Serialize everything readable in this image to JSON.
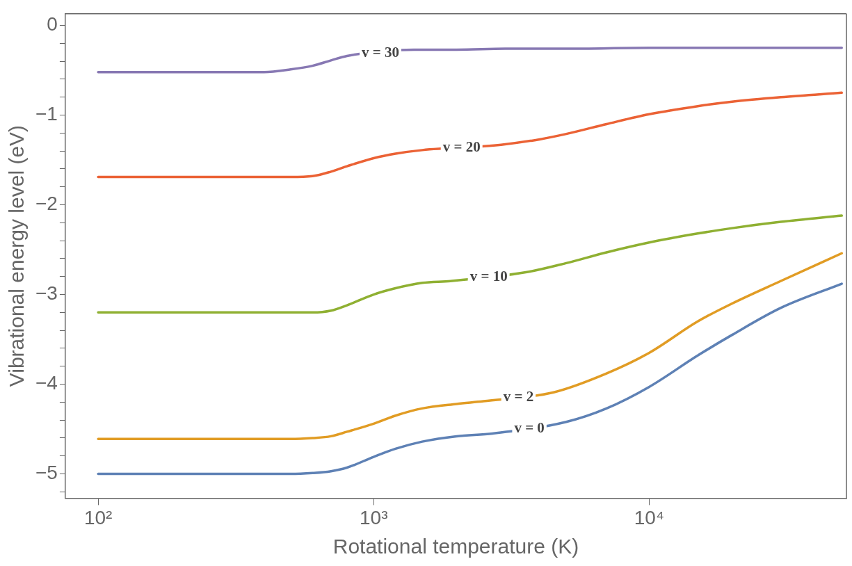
{
  "chart_data": {
    "type": "line",
    "xlabel": "Rotational temperature (K)",
    "ylabel": "Vibrational energy level (eV)",
    "log": "x",
    "grid": false,
    "legend": false,
    "marker": "none",
    "line_style": "solid",
    "xlim": [
      76,
      52000
    ],
    "xticks": [
      {
        "value": 100,
        "label": "10²"
      },
      {
        "value": 1000,
        "label": "10³"
      },
      {
        "value": 10000,
        "label": "10⁴"
      }
    ],
    "ylim": [
      -5.27,
      0.13
    ],
    "yticks": [
      {
        "value": -5.2,
        "label": null
      },
      -5,
      {
        "value": -4.8,
        "label": null
      },
      {
        "value": -4.6,
        "label": null
      },
      {
        "value": -4.4,
        "label": null
      },
      {
        "value": -4.2,
        "label": null
      },
      -4,
      {
        "value": -3.8,
        "label": null
      },
      {
        "value": -3.6,
        "label": null
      },
      {
        "value": -3.4,
        "label": null
      },
      {
        "value": -3.2,
        "label": null
      },
      -3,
      {
        "value": -2.8,
        "label": null
      },
      {
        "value": -2.6,
        "label": null
      },
      {
        "value": -2.4,
        "label": null
      },
      {
        "value": -2.2,
        "label": null
      },
      -2,
      {
        "value": -1.8,
        "label": null
      },
      {
        "value": -1.6,
        "label": null
      },
      {
        "value": -1.4,
        "label": null
      },
      {
        "value": -1.2,
        "label": null
      },
      -1,
      {
        "value": -0.8,
        "label": null
      },
      {
        "value": -0.6,
        "label": null
      },
      {
        "value": -0.4,
        "label": null
      },
      {
        "value": -0.2,
        "label": null
      },
      0
    ],
    "series": [
      {
        "name": "v = 0",
        "color": "#5e81b5",
        "x": [
          100,
          200,
          300,
          400,
          500,
          600,
          700,
          800,
          1000,
          1200,
          1500,
          2000,
          2700,
          5000,
          7000,
          10000,
          15000,
          20000,
          30000,
          50000
        ],
        "values": [
          -5.0,
          -5.0,
          -5.0,
          -5.0,
          -5.0,
          -4.99,
          -4.97,
          -4.93,
          -4.81,
          -4.72,
          -4.64,
          -4.58,
          -4.55,
          -4.42,
          -4.27,
          -4.03,
          -3.68,
          -3.45,
          -3.15,
          -2.88
        ]
      },
      {
        "name": "v = 2",
        "color": "#e19c24",
        "x": [
          100,
          200,
          300,
          400,
          500,
          600,
          700,
          800,
          1000,
          1200,
          1500,
          2000,
          2500,
          4500,
          7000,
          10000,
          15000,
          20000,
          30000,
          50000
        ],
        "values": [
          -4.61,
          -4.61,
          -4.61,
          -4.61,
          -4.61,
          -4.6,
          -4.58,
          -4.53,
          -4.44,
          -4.35,
          -4.27,
          -4.22,
          -4.19,
          -4.09,
          -3.88,
          -3.65,
          -3.3,
          -3.1,
          -2.85,
          -2.54
        ]
      },
      {
        "name": "v = 10",
        "color": "#8fb032",
        "x": [
          100,
          200,
          300,
          400,
          500,
          600,
          700,
          800,
          1000,
          1200,
          1500,
          1900,
          3600,
          5000,
          7000,
          10000,
          15000,
          20000,
          30000,
          50000
        ],
        "values": [
          -3.2,
          -3.2,
          -3.2,
          -3.2,
          -3.2,
          -3.2,
          -3.18,
          -3.12,
          -3.0,
          -2.93,
          -2.87,
          -2.85,
          -2.75,
          -2.65,
          -2.53,
          -2.42,
          -2.32,
          -2.26,
          -2.19,
          -2.12
        ]
      },
      {
        "name": "v = 20",
        "color": "#eb6235",
        "x": [
          100,
          200,
          300,
          400,
          500,
          600,
          700,
          800,
          1000,
          1200,
          1500,
          2900,
          4000,
          5000,
          7000,
          10000,
          15000,
          20000,
          30000,
          50000
        ],
        "values": [
          -1.69,
          -1.69,
          -1.69,
          -1.69,
          -1.69,
          -1.68,
          -1.63,
          -1.57,
          -1.48,
          -1.43,
          -1.39,
          -1.33,
          -1.27,
          -1.21,
          -1.1,
          -0.99,
          -0.9,
          -0.85,
          -0.8,
          -0.75
        ]
      },
      {
        "name": "v = 30",
        "color": "#8778b3",
        "x": [
          100,
          200,
          300,
          400,
          500,
          600,
          700,
          800,
          1400,
          2000,
          3000,
          5000,
          10000,
          20000,
          50000
        ],
        "values": [
          -0.52,
          -0.52,
          -0.52,
          -0.52,
          -0.49,
          -0.45,
          -0.39,
          -0.34,
          -0.27,
          -0.27,
          -0.26,
          -0.26,
          -0.25,
          -0.25,
          -0.25
        ]
      }
    ]
  }
}
